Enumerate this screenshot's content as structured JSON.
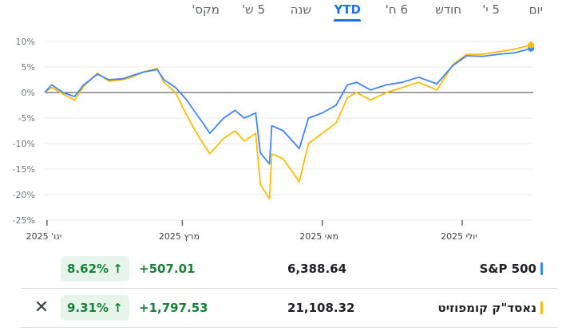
{
  "tabs": [
    {
      "label": "יום",
      "active": false
    },
    {
      "label": "5 י'",
      "active": false
    },
    {
      "label": "חודש",
      "active": false
    },
    {
      "label": "6 ח'",
      "active": false
    },
    {
      "label": "YTD",
      "active": true
    },
    {
      "label": "שנה",
      "active": false
    },
    {
      "label": "5 ש'",
      "active": false
    },
    {
      "label": "מקס'",
      "active": false
    }
  ],
  "colors": {
    "sp500": "#4285f4",
    "nasdaq": "#fbbc04",
    "positive": "#188038",
    "positive_bg": "#e6f4ea",
    "grid": "#e8eaed",
    "zero_line": "#3c4043"
  },
  "icons": {
    "trend_up": "arrow-up-icon",
    "remove": "close-icon"
  },
  "rows": [
    {
      "name": "S&P 500",
      "price": "6,388.64",
      "change": "+507.01",
      "percent": "8.62%",
      "arrow": "↑"
    },
    {
      "name": "נאסד\"ק קומפוזיט",
      "price": "21,108.32",
      "change": "+1,797.53",
      "percent": "9.31%",
      "arrow": "↑",
      "remove": "✕"
    }
  ],
  "chart_data": {
    "type": "line",
    "ylim": [
      -25,
      10
    ],
    "y_ticks": [
      "10%",
      "5%",
      "0%",
      "-5%",
      "-10%",
      "-15%",
      "-20%",
      "-25%"
    ],
    "x_ticks": [
      {
        "date": "2025-01-01",
        "month": "ינו'",
        "year": "2025"
      },
      {
        "date": "2025-03-01",
        "month": "מרץ",
        "year": "2025"
      },
      {
        "date": "2025-05-01",
        "month": "מאי",
        "year": "2025"
      },
      {
        "date": "2025-07-01",
        "month": "יולי",
        "year": "2025"
      }
    ],
    "xlim": [
      "2024-12-31",
      "2025-08-01"
    ],
    "grid": true,
    "series": [
      {
        "name": "S&P 500",
        "color": "#4285f4",
        "x": [
          "2024-12-31",
          "2025-01-03",
          "2025-01-08",
          "2025-01-13",
          "2025-01-17",
          "2025-01-23",
          "2025-01-28",
          "2025-02-03",
          "2025-02-07",
          "2025-02-12",
          "2025-02-18",
          "2025-02-21",
          "2025-02-26",
          "2025-03-03",
          "2025-03-06",
          "2025-03-10",
          "2025-03-13",
          "2025-03-19",
          "2025-03-24",
          "2025-03-28",
          "2025-04-02",
          "2025-04-04",
          "2025-04-08",
          "2025-04-09",
          "2025-04-14",
          "2025-04-21",
          "2025-04-25",
          "2025-05-01",
          "2025-05-07",
          "2025-05-12",
          "2025-05-16",
          "2025-05-22",
          "2025-05-29",
          "2025-06-05",
          "2025-06-12",
          "2025-06-20",
          "2025-06-27",
          "2025-07-03",
          "2025-07-10",
          "2025-07-17",
          "2025-07-24",
          "2025-07-31"
        ],
        "values": [
          0.0,
          1.5,
          0.0,
          -0.8,
          1.5,
          3.6,
          2.5,
          2.7,
          3.3,
          4.0,
          4.5,
          2.5,
          1.0,
          -1.5,
          -3.5,
          -6.0,
          -8.0,
          -5.0,
          -3.5,
          -5.0,
          -4.0,
          -11.8,
          -14.0,
          -6.5,
          -7.5,
          -11.0,
          -5.0,
          -4.0,
          -2.5,
          1.5,
          2.0,
          0.5,
          1.5,
          2.0,
          3.0,
          1.7,
          5.3,
          7.2,
          7.1,
          7.5,
          7.8,
          8.62
        ]
      },
      {
        "name": "נאסד\"ק קומפוזיט",
        "color": "#fbbc04",
        "x": [
          "2024-12-31",
          "2025-01-03",
          "2025-01-08",
          "2025-01-13",
          "2025-01-17",
          "2025-01-23",
          "2025-01-28",
          "2025-02-03",
          "2025-02-07",
          "2025-02-12",
          "2025-02-18",
          "2025-02-21",
          "2025-02-26",
          "2025-03-03",
          "2025-03-06",
          "2025-03-10",
          "2025-03-13",
          "2025-03-19",
          "2025-03-24",
          "2025-03-28",
          "2025-04-02",
          "2025-04-04",
          "2025-04-08",
          "2025-04-09",
          "2025-04-14",
          "2025-04-21",
          "2025-04-25",
          "2025-05-01",
          "2025-05-07",
          "2025-05-12",
          "2025-05-16",
          "2025-05-22",
          "2025-05-29",
          "2025-06-05",
          "2025-06-12",
          "2025-06-20",
          "2025-06-27",
          "2025-07-03",
          "2025-07-10",
          "2025-07-17",
          "2025-07-24",
          "2025-07-31"
        ],
        "values": [
          0.0,
          1.0,
          -0.3,
          -1.5,
          1.2,
          3.8,
          2.2,
          2.5,
          3.0,
          4.0,
          4.7,
          2.0,
          0.0,
          -4.5,
          -7.0,
          -10.0,
          -12.0,
          -9.0,
          -7.5,
          -9.5,
          -8.0,
          -18.0,
          -20.8,
          -12.0,
          -13.0,
          -17.5,
          -10.0,
          -8.0,
          -6.0,
          -1.0,
          0.0,
          -1.5,
          0.0,
          1.0,
          2.0,
          0.5,
          5.5,
          7.5,
          7.5,
          8.0,
          8.5,
          9.31
        ]
      }
    ]
  }
}
